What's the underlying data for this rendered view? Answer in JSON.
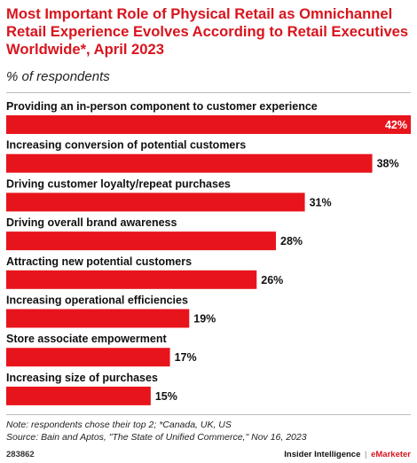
{
  "title": "Most Important Role of Physical Retail as Omnichannel Retail Experience Evolves According to Retail Executives Worldwide*, April 2023",
  "subtitle": "% of respondents",
  "note": "Note: respondents chose their top 2; *Canada, UK, US",
  "source": "Source: Bain and Aptos, \"The State of Unified Commerce,\" Nov 16, 2023",
  "chart_id": "283862",
  "brand": {
    "part1": "Insider Intelligence",
    "separator": "|",
    "part2": "eMarketer"
  },
  "colors": {
    "bar": "#e8141c",
    "title": "#d9141d"
  },
  "chart_data": {
    "type": "bar",
    "orientation": "horizontal",
    "categories": [
      "Providing an in-person component to customer experience",
      "Increasing conversion of potential customers",
      "Driving customer loyalty/repeat purchases",
      "Driving overall brand awareness",
      "Attracting new potential customers",
      "Increasing operational efficiencies",
      "Store associate empowerment",
      "Increasing size of purchases"
    ],
    "values": [
      42,
      38,
      31,
      28,
      26,
      19,
      17,
      15
    ],
    "value_labels": [
      "42%",
      "38%",
      "31%",
      "28%",
      "26%",
      "19%",
      "17%",
      "15%"
    ],
    "xlim": [
      0,
      42
    ],
    "grid": false,
    "legend": "none"
  }
}
